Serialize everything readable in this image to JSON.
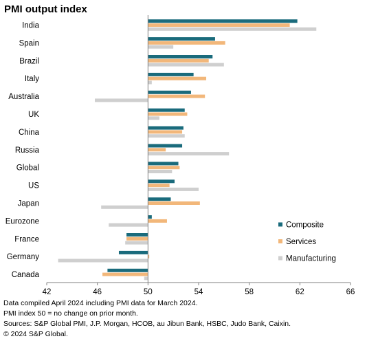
{
  "title": "PMI output index",
  "chart_data": {
    "type": "bar",
    "orientation": "horizontal",
    "title": "PMI output index",
    "categories": [
      "India",
      "Spain",
      "Brazil",
      "Italy",
      "Australia",
      "UK",
      "China",
      "Russia",
      "Global",
      "US",
      "Japan",
      "Eurozone",
      "France",
      "Germany",
      "Canada"
    ],
    "series": [
      {
        "name": "Composite",
        "color": "#1a6b7c",
        "values": [
          61.8,
          55.3,
          55.1,
          53.6,
          53.4,
          52.9,
          52.8,
          52.7,
          52.4,
          52.1,
          51.8,
          50.3,
          48.3,
          47.7,
          46.8
        ]
      },
      {
        "name": "Services",
        "color": "#f2b77a",
        "values": [
          61.2,
          56.1,
          54.8,
          54.6,
          54.5,
          53.1,
          52.7,
          51.4,
          52.5,
          51.7,
          54.1,
          51.5,
          48.3,
          50.1,
          46.4
        ]
      },
      {
        "name": "Manufacturing",
        "color": "#cfcfcf",
        "values": [
          63.3,
          52.0,
          56.0,
          50.3,
          45.8,
          50.9,
          52.9,
          56.4,
          51.9,
          54.0,
          46.3,
          46.9,
          48.2,
          42.9,
          49.7
        ]
      }
    ],
    "xlim": [
      42,
      66
    ],
    "xticks": [
      42,
      46,
      50,
      54,
      58,
      62,
      66
    ],
    "baseline": 50,
    "grid": false,
    "legend_position": "bottom-right"
  },
  "notes": [
    "Data compiled April 2024 including PMI data for March 2024.",
    "PMI index 50 = no change on prior month.",
    "Sources: S&P Global PMI, J.P. Morgan, HCOB, au Jibun Bank, HSBC, Judo Bank, Caixin.",
    "© 2024 S&P Global."
  ]
}
